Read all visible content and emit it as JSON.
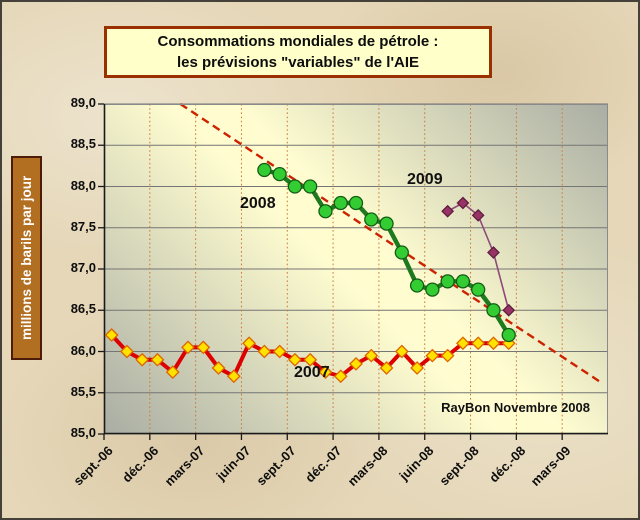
{
  "title": {
    "line1": "Consommations mondiales de pétrole :",
    "line2": "les prévisions \"variables\" de l'AIE"
  },
  "annotations": {
    "label_2008": "2008",
    "label_2009": "2009",
    "label_2007": "2007",
    "credit": "RayBon Novembre 2008"
  },
  "y_axis": {
    "tick_labels": [
      "89,0",
      "88,5",
      "88,0",
      "87,5",
      "87,0",
      "86,5",
      "86,0",
      "85,5",
      "85,0"
    ]
  },
  "x_axis": {
    "tick_labels": [
      "sept.-06",
      "déc.-06",
      "mars-07",
      "juin-07",
      "sept.-07",
      "déc.-07",
      "mars-08",
      "juin-08",
      "sept.-08",
      "déc.-08",
      "mars-09"
    ],
    "tick_interval_months": 3
  },
  "colors": {
    "page_bg": "#e5d7b8",
    "frame_border": "#45403a",
    "title_box_bg": "#ffffc9",
    "title_box_border": "#9a3000",
    "ylabel_box_bg": "#b26f22",
    "ylabel_box_border": "#4d1c08",
    "plot_gradient_edge": "#a9ada3",
    "plot_gradient_mid": "#fffdd0",
    "grid_horizontal": "#757575",
    "grid_vertical": "#cc7733",
    "axis": "#1a1a1a",
    "trendline": "#cc2200"
  },
  "chart_data": {
    "type": "line",
    "title": "Consommations mondiales de pétrole : les prévisions \"variables\" de l'AIE",
    "xlabel": "",
    "ylabel": "millions de barils par jour",
    "ylim": [
      85.0,
      89.0
    ],
    "y_step": 0.5,
    "grid": true,
    "x_categories": [
      "sept.-06",
      "déc.-06",
      "mars-07",
      "juin-07",
      "sept.-07",
      "déc.-07",
      "mars-08",
      "juin-08",
      "sept.-08",
      "déc.-08",
      "mars-09"
    ],
    "x_slot_count": 33,
    "x_unit": "month",
    "series": [
      {
        "name": "2007",
        "start_month": 0,
        "start_label": "sept.-06",
        "marker": "diamond",
        "line_color": "#dd0000",
        "line_width": 4,
        "marker_fill": "#ffe200",
        "marker_stroke": "#dd6600",
        "marker_size": 6,
        "values": [
          86.2,
          86.0,
          85.9,
          85.9,
          85.75,
          86.05,
          86.05,
          85.8,
          85.7,
          86.1,
          86.0,
          86.0,
          85.9,
          85.9,
          85.75,
          85.7,
          85.85,
          85.95,
          85.8,
          86.0,
          85.8,
          85.95,
          85.95,
          86.1,
          86.1,
          86.1,
          86.1
        ]
      },
      {
        "name": "2008",
        "start_month": 10,
        "start_label": "juil.-07",
        "marker": "circle",
        "line_color": "#1e7a1e",
        "line_width": 4.5,
        "marker_fill": "#33cc33",
        "marker_stroke": "#145c14",
        "marker_size": 6.5,
        "values": [
          88.2,
          88.15,
          88.0,
          88.0,
          87.7,
          87.8,
          87.8,
          87.6,
          87.55,
          87.2,
          86.8,
          86.75,
          86.85,
          86.85,
          86.75,
          86.5,
          86.2
        ]
      },
      {
        "name": "2009",
        "start_month": 22,
        "start_label": "juil.-08",
        "marker": "diamond",
        "line_color": "#8e4a78",
        "line_width": 1.6,
        "marker_fill": "#993366",
        "marker_stroke": "#5e1f3e",
        "marker_size": 5.5,
        "values": [
          87.7,
          87.8,
          87.65,
          87.2,
          86.5
        ]
      }
    ],
    "trendline": {
      "style": "dashed",
      "color": "#cc2200",
      "from": {
        "month": 4.5,
        "value": 89.0
      },
      "to": {
        "month": 32.0,
        "value": 85.63
      }
    }
  }
}
